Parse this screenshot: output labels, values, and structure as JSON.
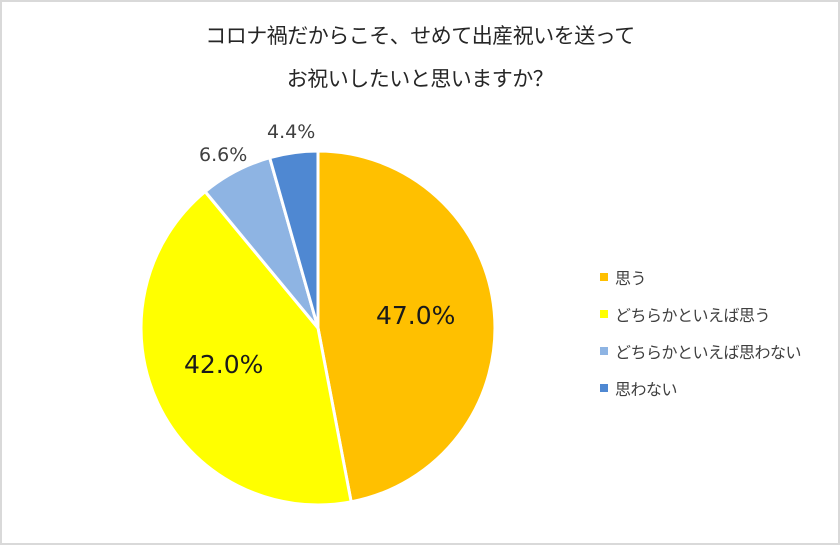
{
  "chart_data": {
    "type": "pie",
    "title": "コロナ禍だからこそ、せめて出産祝いを送ってお祝いしたいと思いますか？",
    "title_lines": [
      "コロナ禍だからこそ、せめて出産祝いを送って",
      "お祝いしたいと思いますか？"
    ],
    "categories": [
      "思う",
      "どちらかといえば思う",
      "どちらかといえば思わない",
      "思わない"
    ],
    "values": [
      47.0,
      42.0,
      6.6,
      4.4
    ],
    "value_labels": [
      "47.0%",
      "42.0%",
      "6.6%",
      "4.4%"
    ],
    "colors": [
      "#FFC000",
      "#FFFF00",
      "#8EB4E3",
      "#4F88D2"
    ],
    "start_angle": "12 o'clock, clockwise",
    "legend_position": "right"
  },
  "legend": {
    "items": [
      {
        "label": "思う",
        "color": "#FFC000"
      },
      {
        "label": "どちらかといえば思う",
        "color": "#FFFF00"
      },
      {
        "label": "どちらかといえば思わない",
        "color": "#8EB4E3"
      },
      {
        "label": "思わない",
        "color": "#4F88D2"
      }
    ]
  }
}
